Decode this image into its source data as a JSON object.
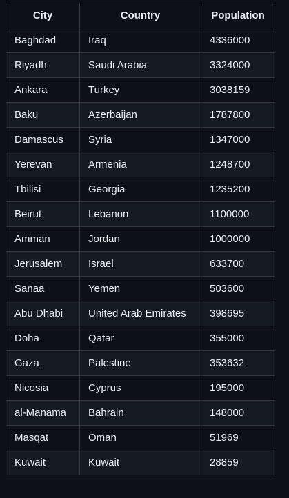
{
  "table": {
    "headers": [
      "City",
      "Country",
      "Population"
    ],
    "rows": [
      [
        "Baghdad",
        "Iraq",
        "4336000"
      ],
      [
        "Riyadh",
        "Saudi Arabia",
        "3324000"
      ],
      [
        "Ankara",
        "Turkey",
        "3038159"
      ],
      [
        "Baku",
        "Azerbaijan",
        "1787800"
      ],
      [
        "Damascus",
        "Syria",
        "1347000"
      ],
      [
        "Yerevan",
        "Armenia",
        "1248700"
      ],
      [
        "Tbilisi",
        "Georgia",
        "1235200"
      ],
      [
        "Beirut",
        "Lebanon",
        "1100000"
      ],
      [
        "Amman",
        "Jordan",
        "1000000"
      ],
      [
        "Jerusalem",
        "Israel",
        "633700"
      ],
      [
        "Sanaa",
        "Yemen",
        "503600"
      ],
      [
        "Abu Dhabi",
        "United Arab Emirates",
        "398695"
      ],
      [
        "Doha",
        "Qatar",
        "355000"
      ],
      [
        "Gaza",
        "Palestine",
        "353632"
      ],
      [
        "Nicosia",
        "Cyprus",
        "195000"
      ],
      [
        "al-Manama",
        "Bahrain",
        "148000"
      ],
      [
        "Masqat",
        "Oman",
        "51969"
      ],
      [
        "Kuwait",
        "Kuwait",
        "28859"
      ]
    ]
  },
  "colors": {
    "background": "#0d1117",
    "row_alt": "#161b22",
    "border": "#30363d",
    "text": "#e6edf3"
  }
}
